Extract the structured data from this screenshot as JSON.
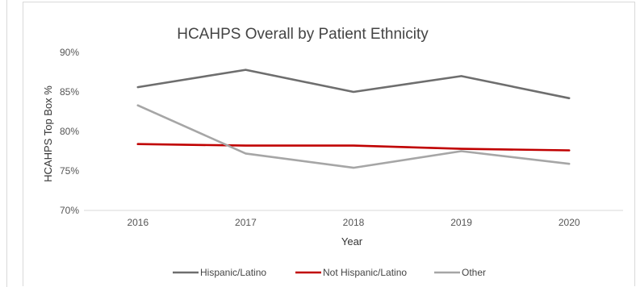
{
  "chart_data": {
    "type": "line",
    "title": "HCAHPS Overall by Patient Ethnicity",
    "xlabel": "Year",
    "ylabel": "HCAHPS Top Box %",
    "categories": [
      "2016",
      "2017",
      "2018",
      "2019",
      "2020"
    ],
    "ylim": [
      70,
      90
    ],
    "yticks": [
      "70%",
      "75%",
      "80%",
      "85%",
      "90%"
    ],
    "grid": false,
    "legend_position": "bottom",
    "series": [
      {
        "name": "Hispanic/Latino",
        "color": "#6e6e6e",
        "values": [
          85.6,
          87.8,
          85.0,
          87.0,
          84.2
        ]
      },
      {
        "name": "Not Hispanic/Latino",
        "color": "#c00000",
        "values": [
          78.4,
          78.2,
          78.2,
          77.8,
          77.6
        ]
      },
      {
        "name": "Other",
        "color": "#a6a6a6",
        "values": [
          83.3,
          77.2,
          75.4,
          77.5,
          75.9
        ]
      }
    ]
  }
}
